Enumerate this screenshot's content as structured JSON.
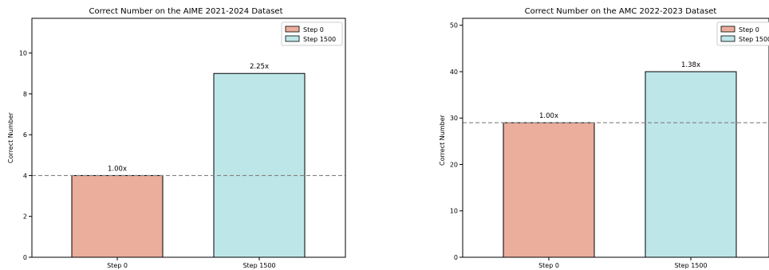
{
  "chart_data": [
    {
      "type": "bar",
      "title": "Correct Number on the AIME 2021-2024 Dataset",
      "xlabel": "",
      "ylabel": "Correct Number",
      "categories": [
        "Step 0",
        "Step 1500"
      ],
      "values": [
        4,
        9
      ],
      "bar_labels": [
        "1.00x",
        "2.25x"
      ],
      "colors": [
        "#EBAD9C",
        "#BDE6E8"
      ],
      "ylim": [
        0,
        11.7
      ],
      "yticks": [
        0,
        2,
        4,
        6,
        8,
        10
      ],
      "baseline": 4,
      "legend": {
        "placement": "top-right",
        "entries": [
          "Step 0",
          "Step 1500"
        ]
      },
      "grid": false
    },
    {
      "type": "bar",
      "title": "Correct Number on the AMC 2022-2023 Dataset",
      "xlabel": "",
      "ylabel": "Correct Number",
      "categories": [
        "Step 0",
        "Step 1500"
      ],
      "values": [
        29,
        40
      ],
      "bar_labels": [
        "1.00x",
        "1.38x"
      ],
      "colors": [
        "#EBAD9C",
        "#BDE6E8"
      ],
      "ylim": [
        0,
        51.5
      ],
      "yticks": [
        0,
        10,
        20,
        30,
        40,
        50
      ],
      "baseline": 29,
      "legend": {
        "placement": "top-right",
        "entries": [
          "Step 0",
          "Step 1500"
        ]
      },
      "grid": false
    }
  ]
}
